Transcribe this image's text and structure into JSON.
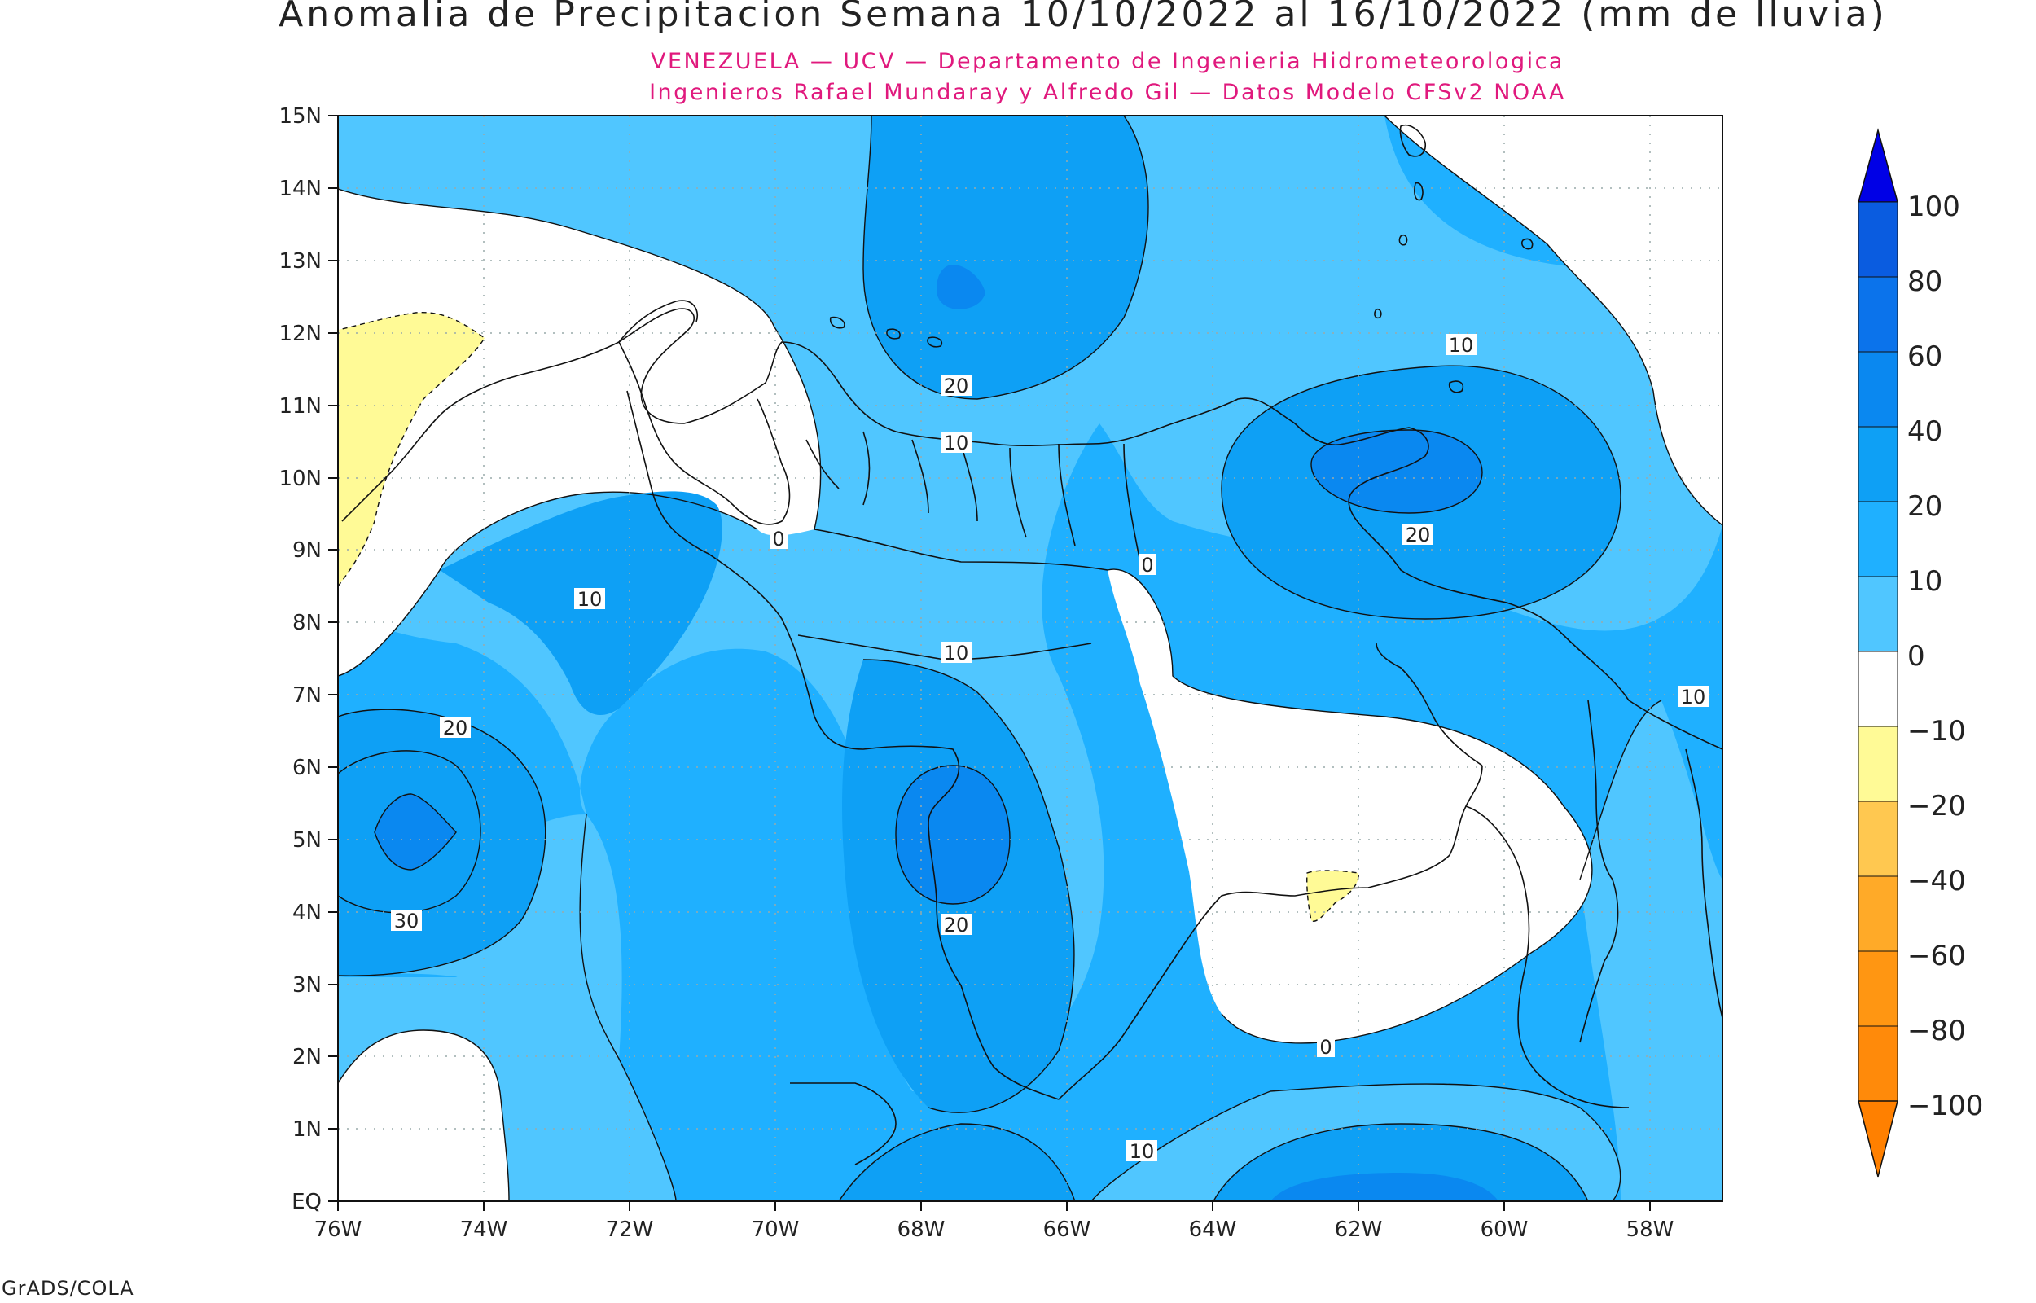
{
  "map": {
    "title": "Anomalia de Precipitacion Semana 10/10/2022 al 16/10/2022 (mm de lluvia)",
    "subtitle_1": "VENEZUELA — UCV — Departamento de Ingenieria Hidrometeorologica",
    "subtitle_2": "Ingenieros Rafael Mundaray y Alfredo Gil — Datos Modelo CFSv2 NOAA",
    "footer": "GrADS/COLA",
    "lat_labels": [
      "15N",
      "14N",
      "13N",
      "12N",
      "11N",
      "10N",
      "9N",
      "8N",
      "7N",
      "6N",
      "5N",
      "4N",
      "3N",
      "2N",
      "1N",
      "EQ"
    ],
    "lon_labels": [
      "76W",
      "74W",
      "72W",
      "70W",
      "68W",
      "66W",
      "64W",
      "62W",
      "60W",
      "58W"
    ],
    "contour_labels": [
      "20",
      "10",
      "0",
      "10",
      "10",
      "20",
      "10",
      "20",
      "30",
      "20",
      "0",
      "10",
      "10",
      "0"
    ],
    "legend": {
      "labels": [
        "100",
        "80",
        "60",
        "40",
        "20",
        "10",
        "0",
        "−10",
        "−20",
        "−40",
        "−60",
        "−80",
        "−100"
      ],
      "colors": [
        "#0000e6",
        "#0a5ce0",
        "#0b73eb",
        "#0a88f0",
        "#0ea0f5",
        "#1fb0ff",
        "#50c6ff",
        "#ffffff",
        "#fffa96",
        "#ffc850",
        "#ffaa28",
        "#ff9612",
        "#ff8000"
      ]
    },
    "colors": {
      "c_10_20": "#1fb0ff",
      "c_0_10": "#50c6ff",
      "c_20_40": "#0ea0f5",
      "c_40_60": "#0a88f0",
      "c_neg": "#fffa96"
    }
  }
}
